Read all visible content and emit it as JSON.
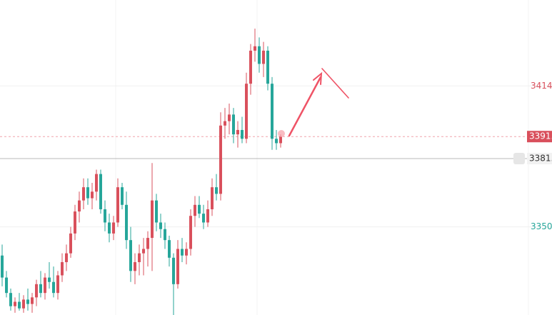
{
  "chart_data": {
    "type": "candlestick",
    "open": [
      3337,
      3327,
      3320,
      3314,
      3316,
      3313,
      3317,
      3315,
      3318,
      3324,
      3320,
      3327,
      3325,
      3320,
      3328,
      3334,
      3338,
      3347,
      3357,
      3362,
      3368,
      3363,
      3366,
      3374,
      3358,
      3352,
      3347,
      3352,
      3368,
      3360,
      3344,
      3330,
      3334,
      3338,
      3340,
      3345,
      3362,
      3352,
      3349,
      3344,
      3336,
      3324,
      3340,
      3337,
      3340,
      3355,
      3360,
      3356,
      3352,
      3358,
      3368,
      3365,
      3396,
      3398,
      3401,
      3392,
      3394,
      3390,
      3415,
      3430,
      3432,
      3424,
      3430,
      3415,
      3390,
      3388
    ],
    "high": [
      3342,
      3330,
      3322,
      3318,
      3320,
      3319,
      3322,
      3320,
      3326,
      3330,
      3329,
      3334,
      3332,
      3330,
      3338,
      3342,
      3350,
      3360,
      3366,
      3372,
      3372,
      3370,
      3376,
      3376,
      3362,
      3356,
      3355,
      3372,
      3370,
      3366,
      3350,
      3338,
      3342,
      3345,
      3348,
      3379,
      3365,
      3356,
      3352,
      3346,
      3338,
      3344,
      3345,
      3343,
      3358,
      3364,
      3364,
      3360,
      3362,
      3372,
      3374,
      3402,
      3404,
      3406,
      3404,
      3398,
      3400,
      3420,
      3433,
      3440,
      3436,
      3434,
      3432,
      3418,
      3394,
      3392
    ],
    "low": [
      3323,
      3318,
      3312,
      3311,
      3312,
      3311,
      3312,
      3311,
      3314,
      3318,
      3317,
      3322,
      3318,
      3317,
      3325,
      3330,
      3336,
      3344,
      3352,
      3358,
      3360,
      3358,
      3362,
      3356,
      3348,
      3343,
      3344,
      3350,
      3358,
      3340,
      3325,
      3324,
      3328,
      3328,
      3332,
      3330,
      3348,
      3345,
      3340,
      3332,
      3310,
      3322,
      3334,
      3333,
      3337,
      3350,
      3354,
      3349,
      3350,
      3355,
      3362,
      3362,
      3390,
      3392,
      3388,
      3386,
      3388,
      3388,
      3410,
      3425,
      3420,
      3418,
      3412,
      3385,
      3385,
      3386
    ],
    "close": [
      3327,
      3320,
      3314,
      3316,
      3313,
      3317,
      3315,
      3318,
      3324,
      3320,
      3327,
      3325,
      3320,
      3328,
      3334,
      3338,
      3347,
      3357,
      3362,
      3368,
      3363,
      3366,
      3374,
      3358,
      3352,
      3347,
      3352,
      3368,
      3360,
      3344,
      3330,
      3334,
      3338,
      3340,
      3345,
      3362,
      3352,
      3349,
      3344,
      3336,
      3324,
      3340,
      3337,
      3340,
      3355,
      3360,
      3356,
      3352,
      3358,
      3368,
      3365,
      3396,
      3398,
      3401,
      3392,
      3394,
      3390,
      3415,
      3430,
      3432,
      3424,
      3430,
      3415,
      3390,
      3388,
      3391
    ],
    "up_color": "#d9505c",
    "down_color": "#26a69a",
    "ylim": [
      3310,
      3453
    ],
    "yticks": [
      {
        "value": 3414,
        "label": "3414."
      },
      {
        "value": 3350,
        "label": "3350."
      }
    ],
    "price_lines": [
      {
        "value": 3391,
        "label": "3391."
      },
      {
        "value": 3381,
        "label": "3381."
      }
    ],
    "grid": true
  }
}
